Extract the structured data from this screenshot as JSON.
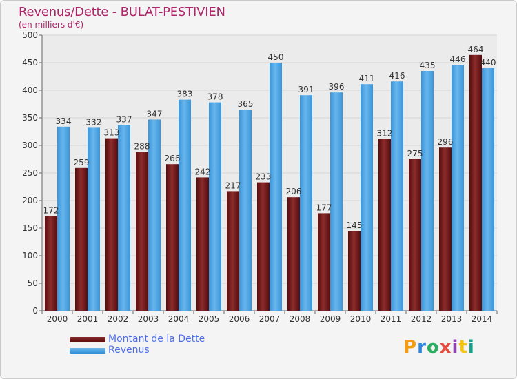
{
  "header": {
    "title": "Revenus/Dette - BULAT-PESTIVIEN",
    "subtitle": "(en milliers d'€)"
  },
  "legend": {
    "dette_label": "Montant de la Dette",
    "revenus_label": "Revenus"
  },
  "logo": {
    "text": "Proxiti",
    "colors": [
      "#f39c12",
      "#2e86de",
      "#27ae60",
      "#e74c3c",
      "#8e44ad",
      "#f1c40f",
      "#16a085"
    ]
  },
  "colors": {
    "dette": "#6e1515",
    "revenus": "#4aa3e6",
    "title": "#b0246a",
    "legend_text": "#4d6fe3"
  },
  "chart_data": {
    "type": "bar",
    "categories": [
      "2000",
      "2001",
      "2002",
      "2003",
      "2004",
      "2005",
      "2006",
      "2007",
      "2008",
      "2009",
      "2010",
      "2011",
      "2012",
      "2013",
      "2014"
    ],
    "series": [
      {
        "name": "Montant de la Dette",
        "values": [
          172,
          259,
          313,
          288,
          266,
          242,
          217,
          233,
          206,
          177,
          145,
          312,
          275,
          296,
          464
        ]
      },
      {
        "name": "Revenus",
        "values": [
          334,
          332,
          337,
          347,
          383,
          378,
          365,
          450,
          391,
          396,
          411,
          416,
          435,
          446,
          440
        ]
      }
    ],
    "ylim": [
      0,
      500
    ],
    "yticks": [
      0,
      50,
      100,
      150,
      200,
      250,
      300,
      350,
      400,
      450,
      500
    ],
    "grid": true,
    "legend_position": "bottom-left"
  }
}
